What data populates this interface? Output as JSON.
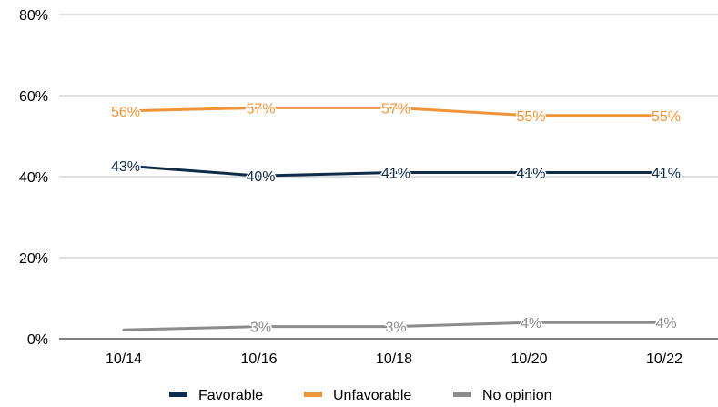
{
  "chart_data": {
    "type": "line",
    "title": "",
    "xlabel": "",
    "ylabel": "",
    "categories": [
      "10/14",
      "10/16",
      "10/18",
      "10/20",
      "10/22"
    ],
    "ylim": [
      0,
      80
    ],
    "yticks": [
      0,
      20,
      40,
      60,
      80
    ],
    "ytick_labels": [
      "0%",
      "20%",
      "40%",
      "60%",
      "80%"
    ],
    "grid": true,
    "legend_position": "bottom",
    "series": [
      {
        "name": "Favorable",
        "color": "#0f2d4a",
        "values": [
          42.7,
          40.2,
          41,
          41,
          41
        ],
        "labels": [
          "43%",
          "40%",
          "41%",
          "41%",
          "41%"
        ]
      },
      {
        "name": "Unfavorable",
        "color": "#f0943a",
        "values": [
          56.2,
          57,
          57,
          55.1,
          55.1
        ],
        "labels": [
          "56%",
          "57%",
          "57%",
          "55%",
          "55%"
        ]
      },
      {
        "name": "No opinion",
        "color": "#8c8c8c",
        "values": [
          2.2,
          3,
          3,
          4,
          4
        ],
        "labels": [
          "",
          "3%",
          "3%",
          "4%",
          "4%"
        ]
      }
    ]
  }
}
